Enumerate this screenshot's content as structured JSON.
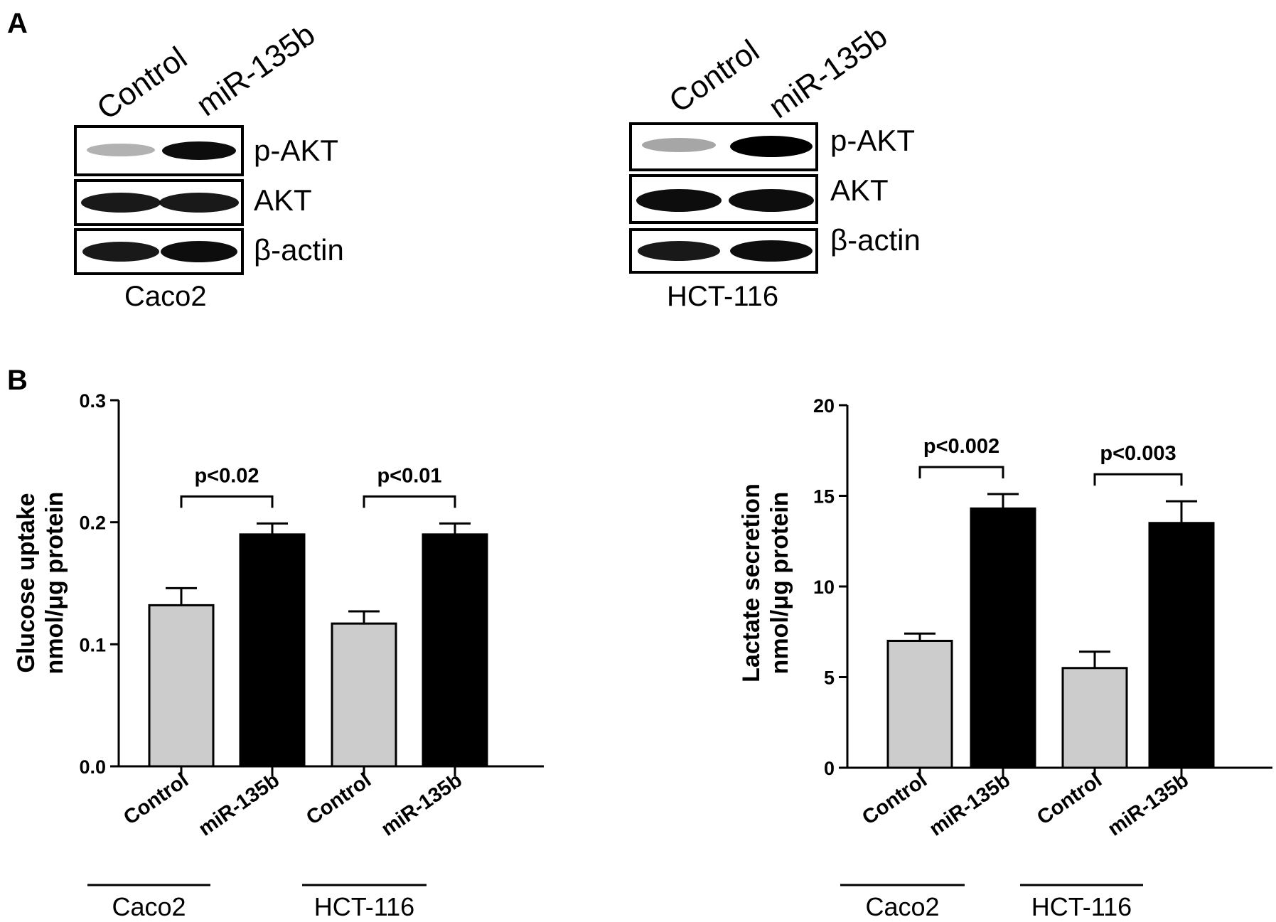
{
  "panels": {
    "a": "A",
    "b": "B"
  },
  "blots": [
    {
      "cell_line": "Caco2",
      "lanes": [
        "Control",
        "miR-135b"
      ],
      "bands": [
        {
          "label": "p-AKT",
          "intensity": [
            0.3,
            0.95
          ]
        },
        {
          "label": "AKT",
          "intensity": [
            0.9,
            0.9
          ]
        },
        {
          "label": "β-actin",
          "intensity": [
            0.9,
            0.95
          ]
        }
      ]
    },
    {
      "cell_line": "HCT-116",
      "lanes": [
        "Control",
        "miR-135b"
      ],
      "bands": [
        {
          "label": "p-AKT",
          "intensity": [
            0.35,
            1.0
          ]
        },
        {
          "label": "AKT",
          "intensity": [
            0.95,
            0.95
          ]
        },
        {
          "label": "β-actin",
          "intensity": [
            0.9,
            0.95
          ]
        }
      ]
    }
  ],
  "colors": {
    "control": "#cccccc",
    "mir": "#000000"
  },
  "chart_data": [
    {
      "type": "bar",
      "ylabel_line1": "Glucose uptake",
      "ylabel_line2": "nmol/μg protein",
      "ylim": [
        0,
        0.3
      ],
      "yticks": [
        0.0,
        0.1,
        0.2,
        0.3
      ],
      "ytick_labels": [
        "0.0",
        "0.1",
        "0.2",
        "0.3"
      ],
      "categories": [
        "Control",
        "miR-135b",
        "Control",
        "miR-135b"
      ],
      "groups": [
        "Caco2",
        "HCT-116"
      ],
      "values": [
        0.132,
        0.19,
        0.117,
        0.19
      ],
      "errors": [
        0.014,
        0.009,
        0.01,
        0.009
      ],
      "comparisons": [
        {
          "between": [
            0,
            1
          ],
          "label": "p<0.02"
        },
        {
          "between": [
            2,
            3
          ],
          "label": "p<0.01"
        }
      ],
      "grid": false
    },
    {
      "type": "bar",
      "ylabel_line1": "Lactate secretion",
      "ylabel_line2": "nmol/μg protein",
      "ylim": [
        0,
        20
      ],
      "yticks": [
        0,
        5,
        10,
        15,
        20
      ],
      "ytick_labels": [
        "0",
        "5",
        "10",
        "15",
        "20"
      ],
      "categories": [
        "Control",
        "miR-135b",
        "Control",
        "miR-135b"
      ],
      "groups": [
        "Caco2",
        "HCT-116"
      ],
      "values": [
        7.0,
        14.3,
        5.5,
        13.5
      ],
      "errors": [
        0.4,
        0.8,
        0.9,
        1.2
      ],
      "comparisons": [
        {
          "between": [
            0,
            1
          ],
          "label": "p<0.002"
        },
        {
          "between": [
            2,
            3
          ],
          "label": "p<0.003"
        }
      ],
      "grid": false
    }
  ]
}
